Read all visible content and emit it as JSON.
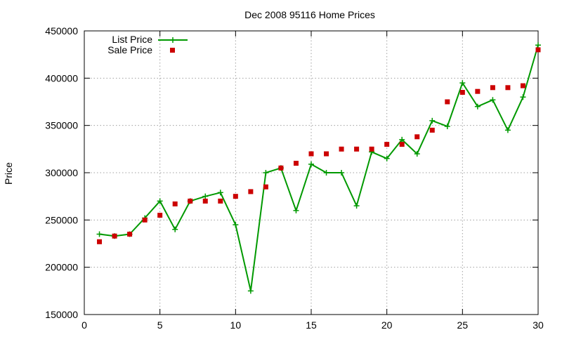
{
  "chart_data": {
    "type": "line",
    "title": "Dec 2008 95116 Home Prices",
    "xlabel": "",
    "ylabel": "Price",
    "xlim": [
      0,
      30
    ],
    "ylim": [
      150000,
      450000
    ],
    "xticks": [
      0,
      5,
      10,
      15,
      20,
      25,
      30
    ],
    "yticks": [
      150000,
      200000,
      250000,
      300000,
      350000,
      400000,
      450000
    ],
    "grid": true,
    "legend_position": "top-left",
    "series": [
      {
        "name": "List Price",
        "style": "line-with-plus-markers",
        "color": "#009900",
        "x": [
          1,
          2,
          3,
          4,
          5,
          6,
          7,
          8,
          9,
          10,
          11,
          12,
          13,
          14,
          15,
          16,
          17,
          18,
          19,
          20,
          21,
          22,
          23,
          24,
          25,
          26,
          27,
          28,
          29,
          30
        ],
        "values": [
          235000,
          233000,
          235000,
          252000,
          270000,
          240000,
          270000,
          275000,
          279000,
          245000,
          175000,
          300000,
          305000,
          260000,
          309000,
          300000,
          300000,
          265000,
          322000,
          315000,
          335000,
          320000,
          355000,
          349000,
          395000,
          370000,
          377000,
          345000,
          380000,
          435000
        ]
      },
      {
        "name": "Sale Price",
        "style": "square-markers",
        "color": "#cc0000",
        "x": [
          1,
          2,
          3,
          4,
          5,
          6,
          7,
          8,
          9,
          10,
          11,
          12,
          13,
          14,
          15,
          16,
          17,
          18,
          19,
          20,
          21,
          22,
          23,
          24,
          25,
          26,
          27,
          28,
          29,
          30
        ],
        "values": [
          227000,
          233000,
          235000,
          250000,
          255000,
          267000,
          270000,
          270000,
          270000,
          275000,
          280000,
          285000,
          305000,
          310000,
          320000,
          320000,
          325000,
          325000,
          325000,
          330000,
          330000,
          338000,
          345000,
          375000,
          385000,
          386000,
          390000,
          390000,
          392000,
          430000
        ]
      }
    ]
  }
}
